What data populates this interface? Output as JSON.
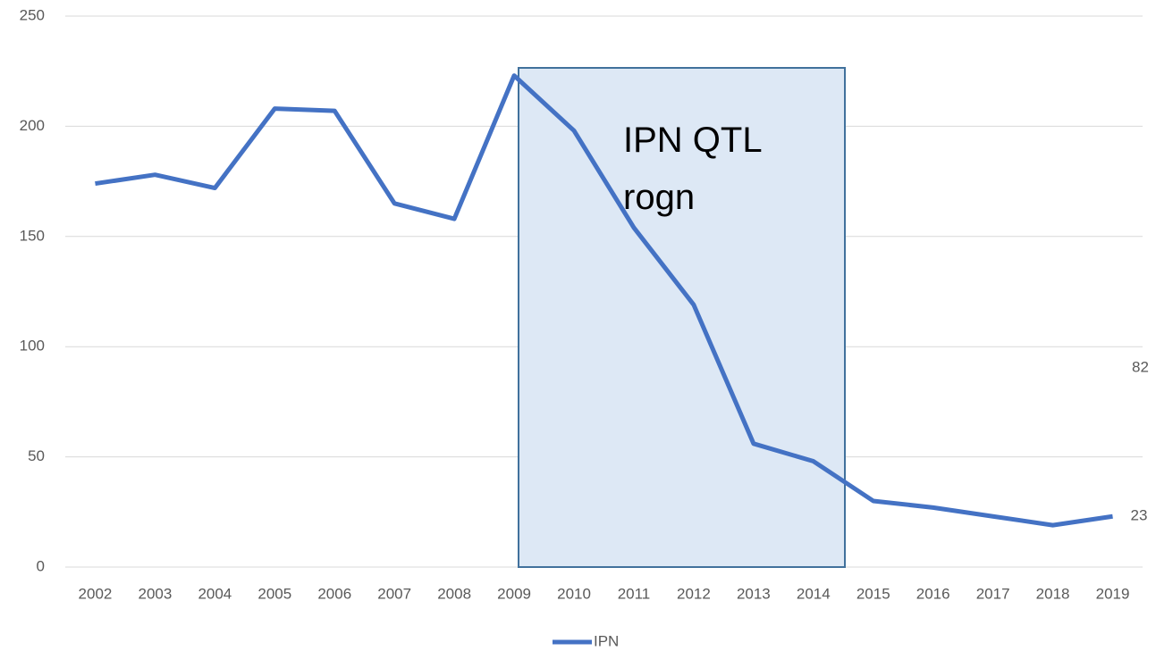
{
  "chart_data": {
    "type": "line",
    "categories": [
      "2002",
      "2003",
      "2004",
      "2005",
      "2006",
      "2007",
      "2008",
      "2009",
      "2010",
      "2011",
      "2012",
      "2013",
      "2014",
      "2015",
      "2016",
      "2017",
      "2018",
      "2019"
    ],
    "series": [
      {
        "name": "IPN",
        "color": "#4472c4",
        "values": [
          174,
          178,
          172,
          208,
          207,
          165,
          158,
          223,
          198,
          154,
          119,
          56,
          48,
          30,
          27,
          23,
          19,
          23
        ]
      }
    ],
    "ylim": [
      0,
      250
    ],
    "yticks": [
      0,
      50,
      100,
      150,
      200,
      250
    ],
    "grid": true,
    "legend": "bottom",
    "annotations": [
      "IPN QTL rogn",
      "82"
    ]
  }
}
